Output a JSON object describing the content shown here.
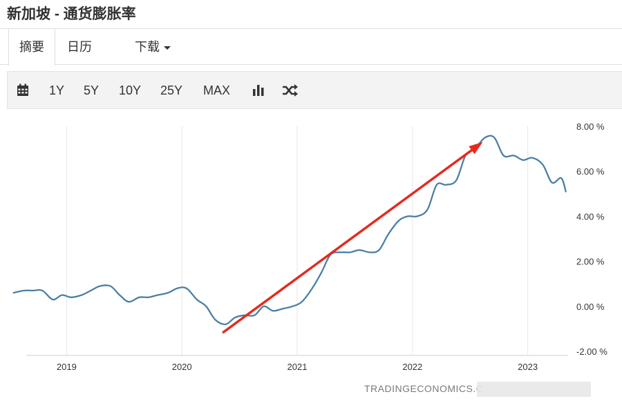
{
  "page": {
    "title": "新加坡 - 通货膨胀率"
  },
  "tabs": [
    {
      "label": "摘要"
    },
    {
      "label": "日历"
    },
    {
      "label": "下载"
    }
  ],
  "toolbar": {
    "ranges": [
      "1Y",
      "5Y",
      "10Y",
      "25Y",
      "MAX"
    ],
    "icons": [
      "calendar-icon",
      "bar-chart-icon",
      "shuffle-icon"
    ]
  },
  "chart_data": {
    "type": "line",
    "ylim": [
      -2,
      8
    ],
    "ytick_labels": [
      "8.00 %",
      "6.00 %",
      "4.00 %",
      "2.00 %",
      "0.00 %",
      "-2.00 %"
    ],
    "yticks": [
      8,
      6,
      4,
      2,
      0,
      -2
    ],
    "xtick_labels": [
      "2019",
      "2020",
      "2021",
      "2022",
      "2023"
    ],
    "xticks": [
      2019,
      2020,
      2021,
      2022,
      2023
    ],
    "xlim": [
      2018.5,
      2023.35
    ],
    "grid": "vertical",
    "series_color": "#4a7fa5",
    "series": [
      {
        "x": [
          2018.54,
          2018.63,
          2018.71,
          2018.79,
          2018.88,
          2018.96,
          2019.04,
          2019.13,
          2019.21,
          2019.29,
          2019.38,
          2019.46,
          2019.54,
          2019.63,
          2019.71,
          2019.79,
          2019.88,
          2019.96,
          2020.04,
          2020.13,
          2020.21,
          2020.29,
          2020.38,
          2020.46,
          2020.54,
          2020.63,
          2020.71,
          2020.79,
          2020.88,
          2020.96,
          2021.04,
          2021.13,
          2021.21,
          2021.29,
          2021.38,
          2021.46,
          2021.54,
          2021.63,
          2021.71,
          2021.79,
          2021.88,
          2021.96,
          2022.04,
          2022.13,
          2022.21,
          2022.29,
          2022.38,
          2022.46,
          2022.54,
          2022.63,
          2022.71,
          2022.79,
          2022.88,
          2022.96,
          2023.04,
          2023.13,
          2023.21,
          2023.29,
          2023.33
        ],
        "values": [
          0.6,
          0.7,
          0.7,
          0.7,
          0.3,
          0.5,
          0.4,
          0.5,
          0.7,
          0.9,
          0.9,
          0.5,
          0.2,
          0.4,
          0.4,
          0.5,
          0.6,
          0.8,
          0.8,
          0.3,
          0.0,
          -0.6,
          -0.8,
          -0.5,
          -0.4,
          -0.4,
          0.0,
          -0.2,
          -0.1,
          0.0,
          0.2,
          0.8,
          1.5,
          2.3,
          2.4,
          2.4,
          2.5,
          2.4,
          2.5,
          3.2,
          3.8,
          4.0,
          4.0,
          4.3,
          5.4,
          5.4,
          5.6,
          6.7,
          7.0,
          7.5,
          7.5,
          6.7,
          6.7,
          6.5,
          6.6,
          6.3,
          5.5,
          5.7,
          5.1
        ]
      }
    ],
    "annotation": {
      "type": "arrow",
      "color": "#e52a20",
      "from": {
        "x": 2020.36,
        "y": -1.15
      },
      "to": {
        "x": 2022.61,
        "y": 7.3
      }
    },
    "credit": "TRADINGECONOMICS.C"
  }
}
